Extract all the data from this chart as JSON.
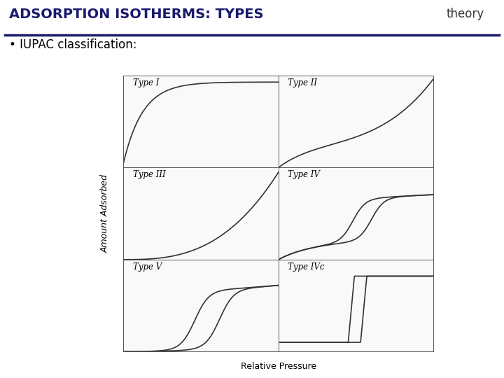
{
  "title": "ADSORPTION ISOTHERMS: TYPES",
  "subtitle": "theory",
  "bullet": "• IUPAC classification:",
  "title_color": "#1a1a6e",
  "line_color": "#333333",
  "background": "#ffffff",
  "types": [
    "Type I",
    "Type II",
    "Type III",
    "Type IV",
    "Type V",
    "Type IVc"
  ],
  "xlabel": "Relative Pressure",
  "ylabel": "Amount Adsorbed",
  "title_fontsize": 14,
  "subtitle_fontsize": 12,
  "bullet_fontsize": 12,
  "label_fontsize": 8.5,
  "axis_label_fontsize": 9
}
